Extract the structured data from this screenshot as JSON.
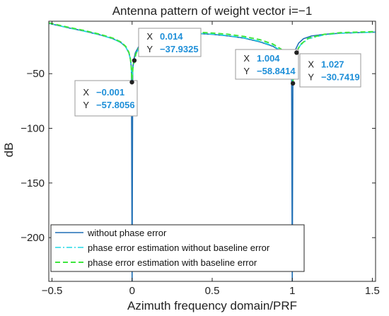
{
  "chart_data": {
    "type": "line",
    "title": "Antenna pattern of weight vector i=−1",
    "xlabel": "Azimuth frequency domain/PRF",
    "ylabel": "dB",
    "xlim": [
      -0.52,
      1.52
    ],
    "ylim": [
      -240,
      -2
    ],
    "xticks": [
      -0.5,
      0,
      0.5,
      1,
      1.5
    ],
    "xtick_labels": [
      "−0.5",
      "0",
      "0.5",
      "1",
      "1.5"
    ],
    "yticks": [
      -50,
      -100,
      -150,
      -200
    ],
    "ytick_labels": [
      "−50",
      "−100",
      "−150",
      "−200"
    ],
    "grid": false,
    "legend_position": "bottom-left",
    "colors": {
      "nulls": "#1f6fb5",
      "datatip_value": "#1e8fd8"
    },
    "series": [
      {
        "name": "without phase error",
        "color": "#1f6fb5",
        "style": "solid",
        "x": [
          -0.52,
          -0.4,
          -0.3,
          -0.2,
          -0.12,
          -0.07,
          -0.04,
          -0.02,
          -0.01,
          -0.004,
          0,
          0.004,
          0.01,
          0.02,
          0.04,
          0.07,
          0.12,
          0.2,
          0.3,
          0.4,
          0.5,
          0.6,
          0.7,
          0.8,
          0.88,
          0.93,
          0.96,
          0.98,
          0.99,
          0.996,
          1,
          1.004,
          1.01,
          1.02,
          1.04,
          1.07,
          1.12,
          1.2,
          1.3,
          1.4,
          1.52
        ],
        "y": [
          -4,
          -8,
          -11,
          -14.5,
          -18,
          -21.5,
          -25.5,
          -31,
          -37,
          -45,
          -240,
          -45,
          -38,
          -31,
          -25.5,
          -21.5,
          -17.5,
          -14,
          -13,
          -13.2,
          -14,
          -15.5,
          -17.5,
          -21,
          -25,
          -29.5,
          -35,
          -42,
          -49,
          -56,
          -240,
          -50,
          -35,
          -28,
          -22,
          -18,
          -15.5,
          -14,
          -13,
          -12.5,
          -12
        ]
      },
      {
        "name": "phase error estimation without baseline error",
        "color": "#22d8e6",
        "style": "dashdot",
        "x": [
          -0.52,
          -0.4,
          -0.3,
          -0.2,
          -0.12,
          -0.07,
          -0.04,
          -0.02,
          -0.01,
          -0.005,
          -0.001,
          0.005,
          0.014,
          0.03,
          0.06,
          0.1,
          0.2,
          0.3,
          0.4,
          0.5,
          0.6,
          0.7,
          0.8,
          0.88,
          0.93,
          0.96,
          0.98,
          0.99,
          0.998,
          1.004,
          1.012,
          1.027,
          1.05,
          1.1,
          1.2,
          1.3,
          1.4,
          1.52
        ],
        "y": [
          -4,
          -8,
          -11,
          -14.5,
          -18,
          -21.5,
          -25.5,
          -31,
          -37.5,
          -45,
          -57.8056,
          -46,
          -37.9325,
          -30,
          -24,
          -20,
          -15,
          -13,
          -13,
          -13.8,
          -15.2,
          -17.2,
          -20.5,
          -24.5,
          -29,
          -34.5,
          -41.5,
          -48.5,
          -55,
          -58.8414,
          -45,
          -30.7419,
          -24,
          -18,
          -14.5,
          -13,
          -12.5,
          -12
        ]
      },
      {
        "name": "phase error estimation with baseline error",
        "color": "#3ee63e",
        "style": "dashed",
        "x": [
          -0.52,
          -0.4,
          -0.3,
          -0.2,
          -0.12,
          -0.07,
          -0.04,
          -0.02,
          -0.01,
          -0.005,
          -0.001,
          0.005,
          0.014,
          0.03,
          0.06,
          0.1,
          0.2,
          0.3,
          0.4,
          0.5,
          0.6,
          0.7,
          0.8,
          0.88,
          0.93,
          0.96,
          0.98,
          0.99,
          0.998,
          1.004,
          1.012,
          1.027,
          1.05,
          1.1,
          1.2,
          1.3,
          1.4,
          1.52
        ],
        "y": [
          -3.5,
          -7.5,
          -10.5,
          -14,
          -17.5,
          -21,
          -25,
          -30.5,
          -37,
          -44,
          -56,
          -45,
          -37,
          -29,
          -23,
          -19,
          -14,
          -12,
          -12,
          -12.8,
          -14,
          -16,
          -19,
          -23,
          -27.5,
          -33,
          -40,
          -47,
          -54,
          -57.5,
          -44,
          -30,
          -23.5,
          -17.5,
          -14,
          -12.5,
          -12,
          -11.5
        ]
      }
    ],
    "datatips": [
      {
        "x_label": "X",
        "x_value": "−0.001",
        "y_label": "Y",
        "y_value": "−57.8056",
        "px": -0.001,
        "py": -57.8056
      },
      {
        "x_label": "X",
        "x_value": "0.014",
        "y_label": "Y",
        "y_value": "−37.9325",
        "px": 0.014,
        "py": -37.9325
      },
      {
        "x_label": "X",
        "x_value": "1.004",
        "y_label": "Y",
        "y_value": "−58.8414",
        "px": 1.004,
        "py": -58.8414
      },
      {
        "x_label": "X",
        "x_value": "1.027",
        "y_label": "Y",
        "y_value": "−30.7419",
        "px": 1.027,
        "py": -30.7419
      }
    ]
  }
}
